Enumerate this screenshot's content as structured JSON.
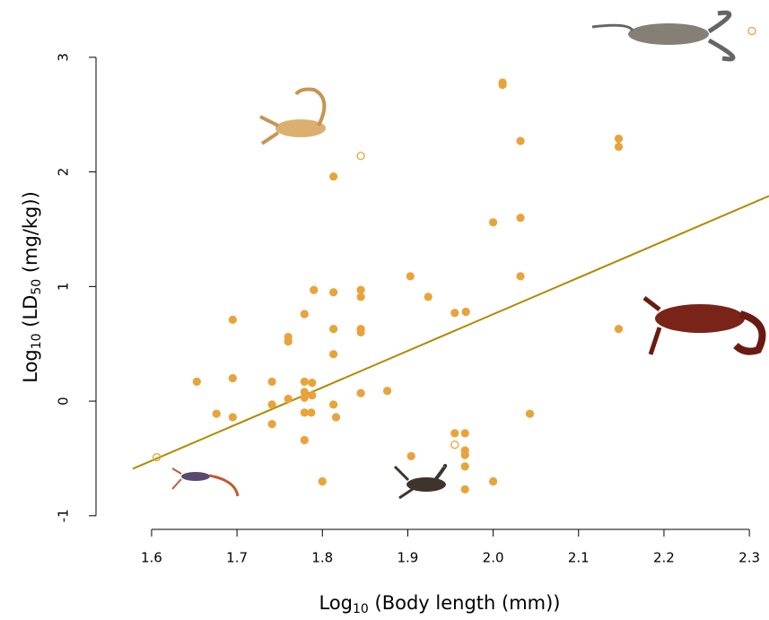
{
  "chart_data": {
    "type": "scatter",
    "x_label": {
      "parts": [
        "Log",
        "10",
        " (Body length (mm))"
      ]
    },
    "y_label": {
      "parts": [
        "Log",
        "10",
        " (LD",
        "50",
        " (mg/kg))"
      ]
    },
    "xlim": [
      1.578,
      2.323
    ],
    "ylim": [
      -1.025,
      3.5
    ],
    "xticks": [
      1.6,
      1.7,
      1.8,
      1.9,
      {
        "value": 2.0,
        "label": "2.0"
      },
      2.1,
      2.2,
      2.3
    ],
    "yticks": [
      -1,
      0,
      1,
      2,
      3
    ],
    "series": [
      {
        "color": "#e8a33a",
        "filled": true,
        "x": [
          1.653,
          1.676,
          1.695,
          1.695,
          1.695,
          1.741,
          1.741,
          1.741,
          1.76,
          1.76,
          1.76,
          1.779,
          1.779,
          1.779,
          1.779,
          1.779,
          1.779,
          1.79,
          1.788,
          1.788,
          1.787,
          1.8,
          1.813,
          1.813,
          1.813,
          1.813,
          1.813,
          1.816,
          1.845,
          1.845,
          1.845,
          1.845,
          1.845,
          1.876,
          1.903,
          1.904,
          1.924,
          1.955,
          1.955,
          1.967,
          1.967,
          1.967,
          1.967,
          1.967,
          1.968,
          2.0,
          2.0,
          2.011,
          2.011,
          2.032,
          2.032,
          2.032,
          2.043,
          2.147,
          2.147,
          2.147
        ],
        "values": [
          0.17,
          -0.11,
          0.71,
          0.2,
          -0.14,
          0.17,
          -0.03,
          -0.2,
          0.56,
          0.52,
          0.02,
          0.76,
          0.17,
          0.08,
          0.03,
          -0.1,
          -0.34,
          0.97,
          0.16,
          0.05,
          -0.1,
          -0.7,
          1.96,
          0.95,
          0.63,
          0.41,
          -0.03,
          -0.14,
          0.97,
          0.91,
          0.63,
          0.6,
          0.07,
          0.09,
          1.09,
          -0.48,
          0.91,
          0.77,
          -0.28,
          -0.28,
          -0.43,
          -0.47,
          -0.57,
          -0.77,
          0.78,
          1.56,
          -0.7,
          2.78,
          2.76,
          2.27,
          1.6,
          1.09,
          -0.11,
          2.29,
          2.22,
          0.63
        ]
      },
      {
        "color": "#e8a33a",
        "filled": false,
        "x": [
          1.606,
          1.845,
          1.955,
          2.303
        ],
        "values": [
          -0.49,
          2.14,
          -0.38,
          3.23
        ]
      }
    ],
    "fit": {
      "color": "#b08a00",
      "x": [
        1.578,
        2.323
      ],
      "values": [
        -0.59,
        1.79
      ]
    }
  }
}
